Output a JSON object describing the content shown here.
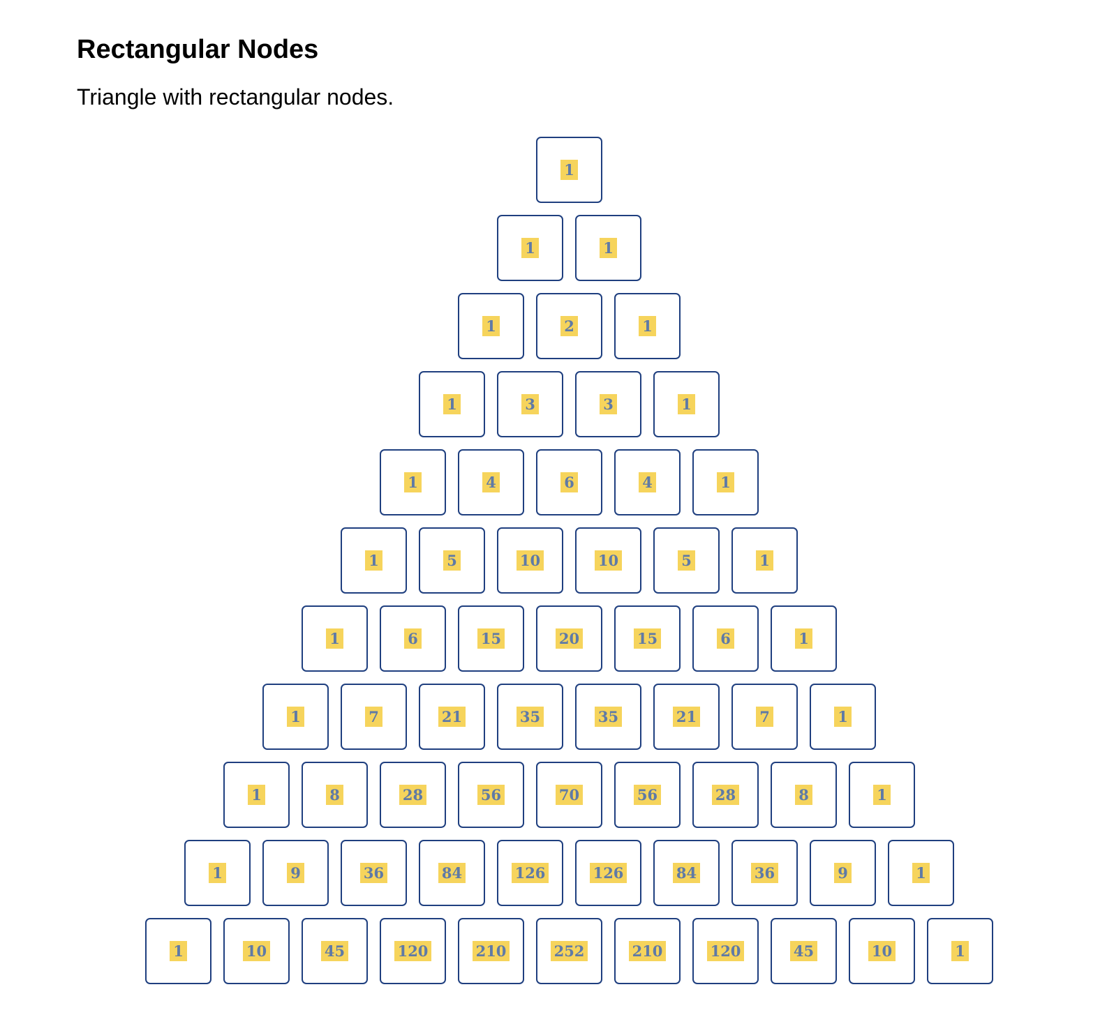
{
  "header": {
    "title": "Rectangular Nodes",
    "description": "Triangle with rectangular nodes."
  },
  "colors": {
    "node_border": "#1f3f7f",
    "value_background": "#f6d45c",
    "value_text": "#5f7aa6"
  },
  "triangle": {
    "rows": [
      [
        1
      ],
      [
        1,
        1
      ],
      [
        1,
        2,
        1
      ],
      [
        1,
        3,
        3,
        1
      ],
      [
        1,
        4,
        6,
        4,
        1
      ],
      [
        1,
        5,
        10,
        10,
        5,
        1
      ],
      [
        1,
        6,
        15,
        20,
        15,
        6,
        1
      ],
      [
        1,
        7,
        21,
        35,
        35,
        21,
        7,
        1
      ],
      [
        1,
        8,
        28,
        56,
        70,
        56,
        28,
        8,
        1
      ],
      [
        1,
        9,
        36,
        84,
        126,
        126,
        84,
        36,
        9,
        1
      ],
      [
        1,
        10,
        45,
        120,
        210,
        252,
        210,
        120,
        45,
        10,
        1
      ]
    ]
  }
}
